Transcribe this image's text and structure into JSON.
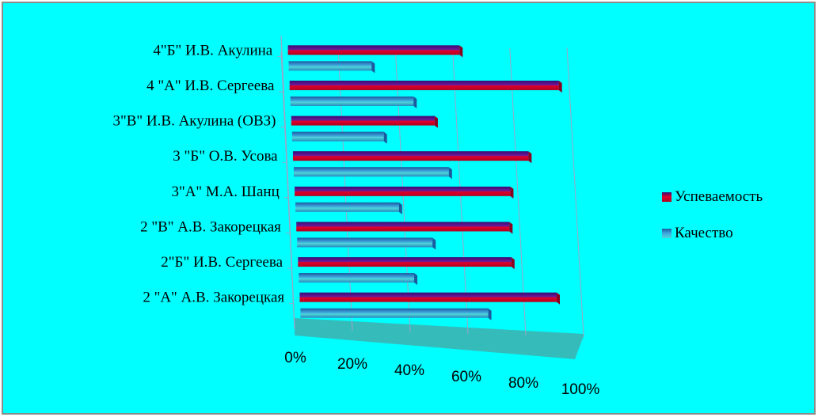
{
  "chart_data": {
    "type": "bar",
    "orientation": "horizontal",
    "categories": [
      "2  \"А\" А.В. Закорецкая",
      "2\"Б\" И.В. Сергеева",
      "2 \"В\" А.В. Закорецкая",
      "3\"А\" М.А. Шанц",
      "3 \"Б\" О.В. Усова",
      "3\"В\" И.В. Акулина (ОВЗ)",
      "4 \"А\" И.В. Сергеева",
      "4\"Б\" И.В. Акулина"
    ],
    "series": [
      {
        "name": "Успеваемость",
        "values": [
          89,
          74,
          74,
          75,
          82,
          50,
          94,
          60
        ]
      },
      {
        "name": "Качество",
        "values": [
          65,
          40,
          47,
          36,
          54,
          32,
          43,
          29
        ]
      }
    ],
    "x_ticks": [
      "0%",
      "20%",
      "40%",
      "60%",
      "80%",
      "100%"
    ],
    "xlim": [
      0,
      100
    ],
    "legend_position": "right",
    "colors": {
      "background": "#00FFFF",
      "border": "#8C8C8C",
      "series_1": "#E0002A",
      "series_1_dark": "#3A0A72",
      "series_2": "#3FA9E0",
      "series_2_dark": "#1C5A9E",
      "floor": "#3CB4B4",
      "grid": "#9AA6C8"
    }
  }
}
